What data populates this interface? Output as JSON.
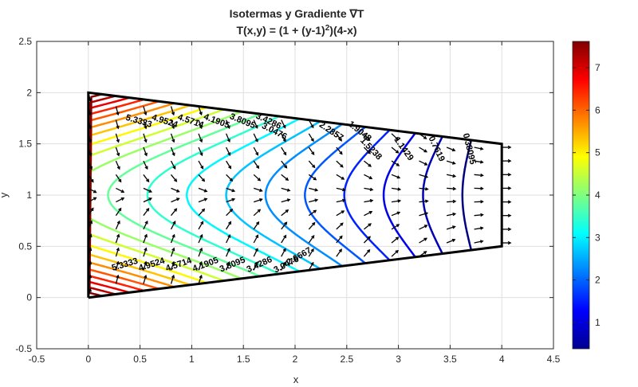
{
  "chart_data": {
    "type": "contour",
    "title": "Isotermas  y  Gradiente  ∇T",
    "subtitle_prefix": "T(x,y)  =  (1  +  (y-1)",
    "subtitle_sup": "2",
    "subtitle_suffix": ")(4-x)",
    "xlabel": "x",
    "ylabel": "y",
    "xlim": [
      -0.5,
      4.5
    ],
    "ylim": [
      -0.5,
      2.5
    ],
    "xticks": [
      "-0.5",
      "0",
      "0.5",
      "1",
      "1.5",
      "2",
      "2.5",
      "3",
      "3.5",
      "4",
      "4.5"
    ],
    "yticks": [
      "-0.5",
      "0",
      "0.5",
      "1",
      "1.5",
      "2",
      "2.5"
    ],
    "grid": true,
    "colorbar": {
      "colormap": "jet",
      "range": [
        0.38,
        7.62
      ],
      "ticks": [
        "1",
        "2",
        "3",
        "4",
        "5",
        "6",
        "7"
      ]
    },
    "domain_boundary": [
      [
        0,
        0
      ],
      [
        4,
        0.5
      ],
      [
        4,
        1.5
      ],
      [
        0,
        2
      ],
      [
        0,
        0
      ]
    ],
    "contour_levels": [
      0.381,
      0.7619,
      1.1429,
      1.5238,
      1.9048,
      2.2857,
      2.6667,
      3.0476,
      3.4286,
      3.8095,
      4.1905,
      4.5714,
      4.9524,
      5.3333,
      5.7143,
      6.0952,
      6.4762,
      6.8571,
      7.2381,
      7.619
    ],
    "contour_labels_upper": [
      "5.3333",
      "4.9524",
      "4.5714",
      "4.1905",
      "3.8095",
      "3.4286",
      "3.0476",
      "2.2857",
      "1.9048",
      "1.5238",
      "1.1429",
      "0.7619",
      "0.38095"
    ],
    "contour_labels_lower": [
      "3.8095",
      "3.4286",
      "3.0476",
      "2.6667",
      "4.1905",
      "4.5714",
      "4.9524",
      "5.3333"
    ],
    "vector_field": "-∇T",
    "colors": {
      "boundary": "#000000",
      "grid": "#dfdfdf",
      "arrows": "#000000"
    }
  }
}
